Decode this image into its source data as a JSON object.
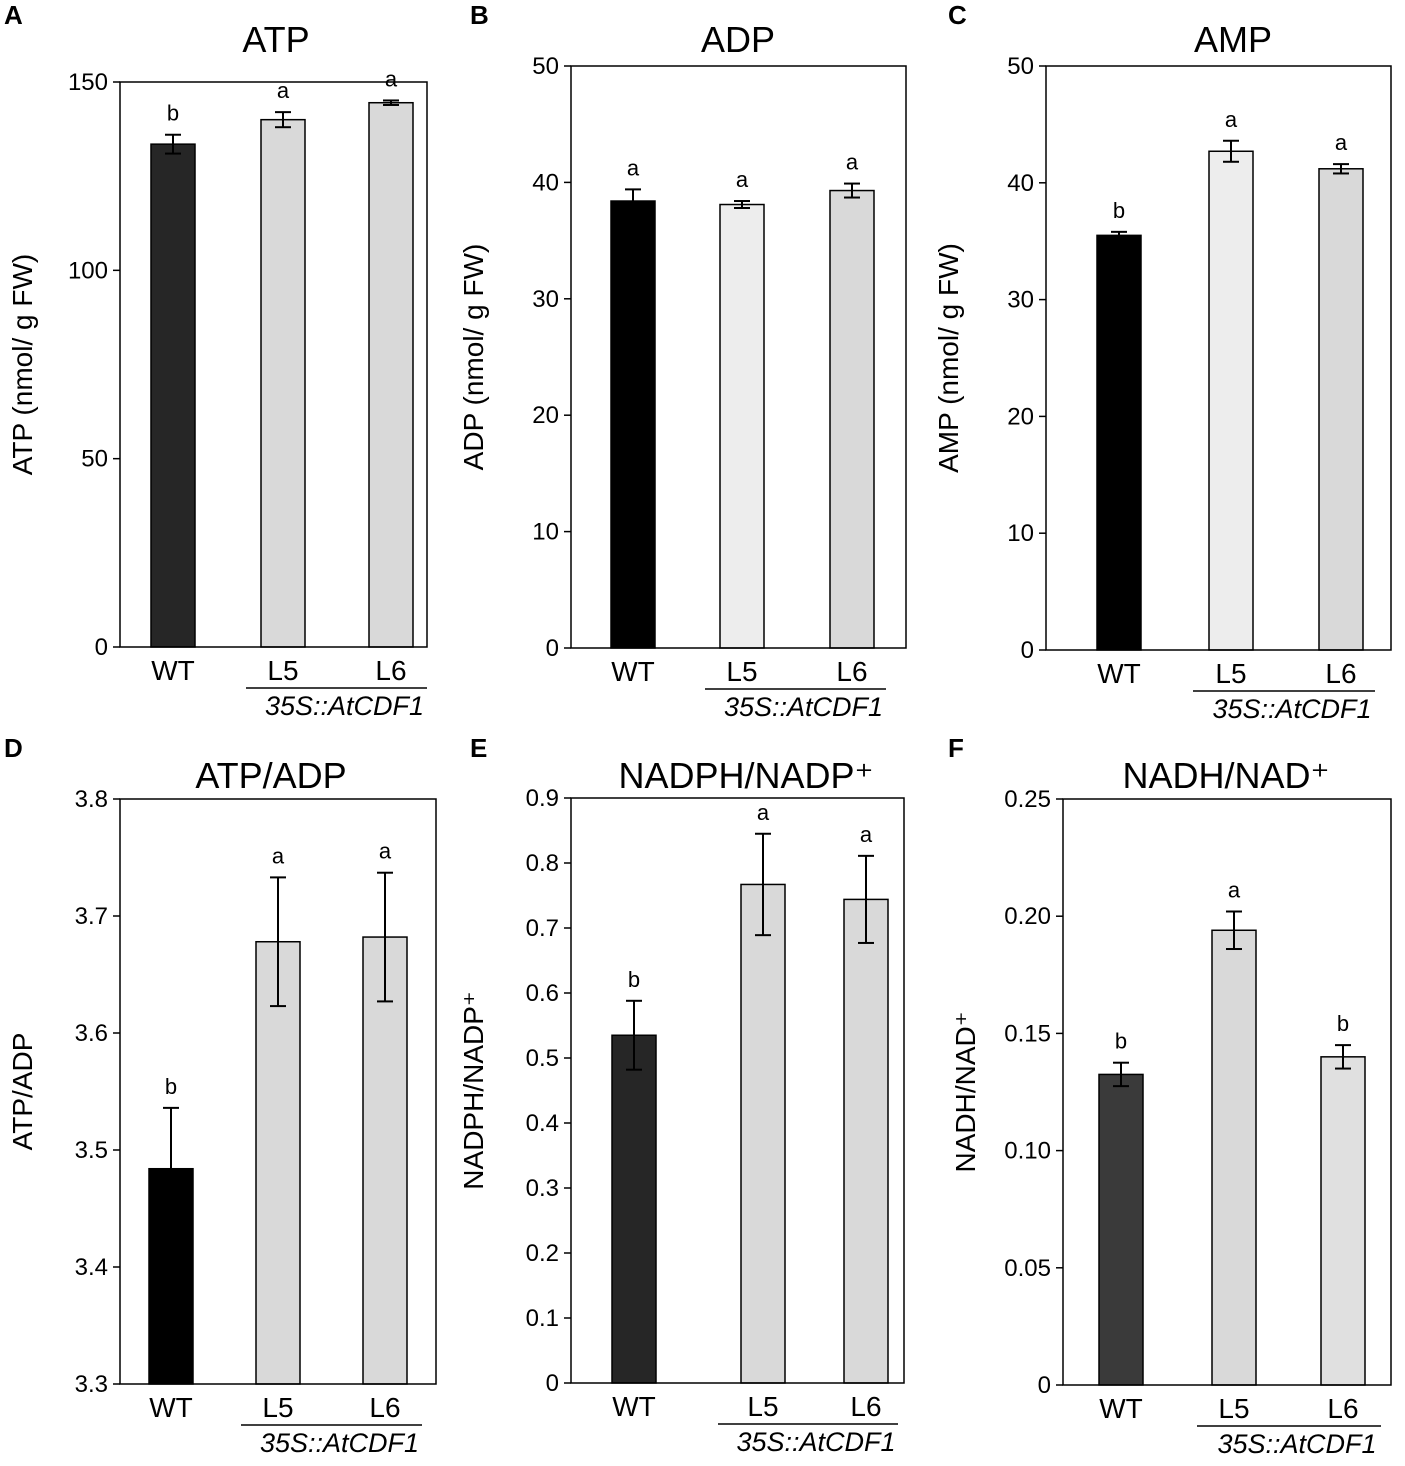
{
  "figure": {
    "group_label": "35S::AtCDF1"
  },
  "chart_data": [
    {
      "type": "bar",
      "panel": "A",
      "title": "ATP",
      "ylabel": "ATP (nmol/ g FW)",
      "ylim": [
        0,
        150
      ],
      "yticks": [
        0,
        50,
        100,
        150
      ],
      "ytick_labels": [
        "0",
        "50",
        "100",
        "150"
      ],
      "categories": [
        "WT",
        "L5",
        "L6"
      ],
      "values": [
        133.5,
        140.0,
        144.5
      ],
      "errors": [
        2.5,
        2.0,
        0.6
      ],
      "significance": [
        "b",
        "a",
        "a"
      ],
      "colors": [
        "#262626",
        "#d9d9d9",
        "#d9d9d9"
      ]
    },
    {
      "type": "bar",
      "panel": "B",
      "title": "ADP",
      "ylabel": "ADP (nmol/ g FW)",
      "ylim": [
        0,
        50
      ],
      "yticks": [
        0,
        10,
        20,
        30,
        40,
        50
      ],
      "ytick_labels": [
        "0",
        "10",
        "20",
        "30",
        "40",
        "50"
      ],
      "categories": [
        "WT",
        "L5",
        "L6"
      ],
      "values": [
        38.4,
        38.1,
        39.3
      ],
      "errors": [
        1.0,
        0.3,
        0.6
      ],
      "significance": [
        "a",
        "a",
        "a"
      ],
      "colors": [
        "#000000",
        "#ededed",
        "#d9d9d9"
      ]
    },
    {
      "type": "bar",
      "panel": "C",
      "title": "AMP",
      "ylabel": "AMP (nmol/ g FW)",
      "ylim": [
        0,
        50
      ],
      "yticks": [
        0,
        10,
        20,
        30,
        40,
        50
      ],
      "ytick_labels": [
        "0",
        "10",
        "20",
        "30",
        "40",
        "50"
      ],
      "categories": [
        "WT",
        "L5",
        "L6"
      ],
      "values": [
        35.5,
        42.7,
        41.2
      ],
      "errors": [
        0.3,
        0.9,
        0.4
      ],
      "significance": [
        "b",
        "a",
        "a"
      ],
      "colors": [
        "#000000",
        "#ededed",
        "#d9d9d9"
      ]
    },
    {
      "type": "bar",
      "panel": "D",
      "title": "ATP/ADP",
      "ylabel": "ATP/ADP",
      "ylim": [
        3.3,
        3.8
      ],
      "yticks": [
        3.3,
        3.4,
        3.5,
        3.6,
        3.7,
        3.8
      ],
      "ytick_labels": [
        "3.3",
        "3.4",
        "3.5",
        "3.6",
        "3.7",
        "3.8"
      ],
      "categories": [
        "WT",
        "L5",
        "L6"
      ],
      "values": [
        3.484,
        3.678,
        3.682
      ],
      "errors": [
        0.052,
        0.055,
        0.055
      ],
      "significance": [
        "b",
        "a",
        "a"
      ],
      "colors": [
        "#000000",
        "#d9d9d9",
        "#d9d9d9"
      ]
    },
    {
      "type": "bar",
      "panel": "E",
      "title": "NADPH/NADP⁺",
      "ylabel": "NADPH/NADP⁺",
      "ylim": [
        0,
        0.9
      ],
      "yticks": [
        0,
        0.1,
        0.2,
        0.3,
        0.4,
        0.5,
        0.6,
        0.7,
        0.8,
        0.9
      ],
      "ytick_labels": [
        "0",
        "0.1",
        "0.2",
        "0.3",
        "0.4",
        "0.5",
        "0.6",
        "0.7",
        "0.8",
        "0.9"
      ],
      "categories": [
        "WT",
        "L5",
        "L6"
      ],
      "values": [
        0.535,
        0.767,
        0.744
      ],
      "errors": [
        0.053,
        0.078,
        0.067
      ],
      "significance": [
        "b",
        "a",
        "a"
      ],
      "colors": [
        "#262626",
        "#d9d9d9",
        "#d9d9d9"
      ]
    },
    {
      "type": "bar",
      "panel": "F",
      "title": "NADH/NAD⁺",
      "ylabel": "NADH/NAD⁺",
      "ylim": [
        0,
        0.25
      ],
      "yticks": [
        0,
        0.05,
        0.1,
        0.15,
        0.2,
        0.25
      ],
      "ytick_labels": [
        "0",
        "0.05",
        "0.10",
        "0.15",
        "0.20",
        "0.25"
      ],
      "categories": [
        "WT",
        "L5",
        "L6"
      ],
      "values": [
        0.1325,
        0.194,
        0.14
      ],
      "errors": [
        0.005,
        0.008,
        0.005
      ],
      "significance": [
        "b",
        "a",
        "b"
      ],
      "colors": [
        "#3a3a3a",
        "#d9d9d9",
        "#e0e0e0"
      ]
    }
  ]
}
